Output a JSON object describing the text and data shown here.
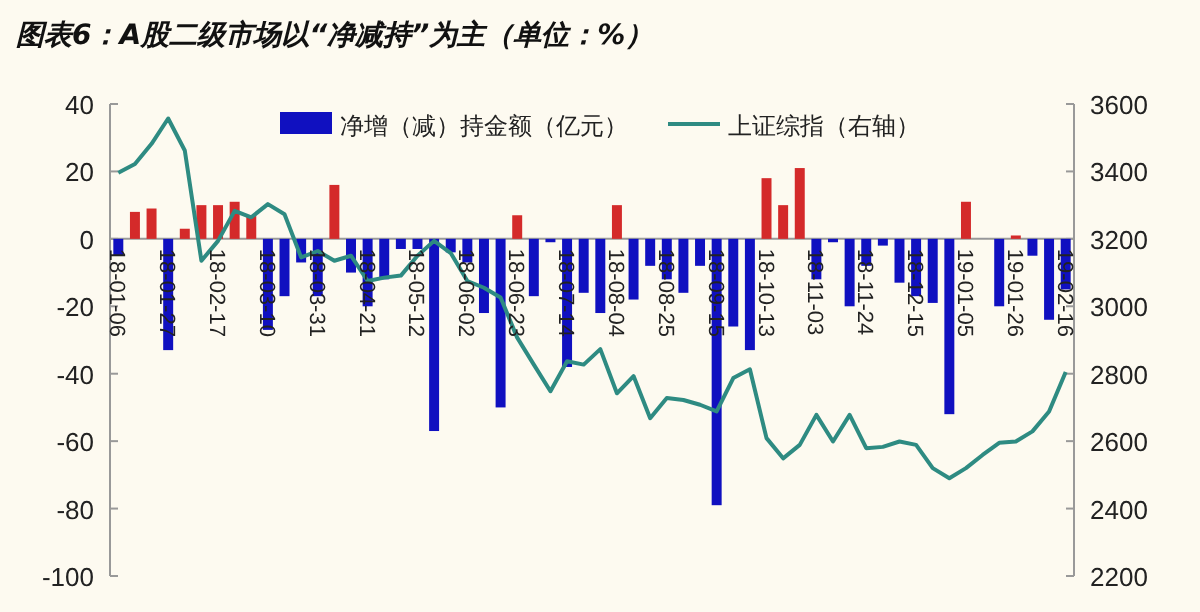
{
  "chart_data": {
    "type": "bar",
    "title": "图表6：A股二级市场以“净减持”为主（单位：%）",
    "categories": [
      "18-01-06",
      null,
      null,
      "18-01-27",
      null,
      null,
      "18-02-17",
      null,
      null,
      "18-03-10",
      null,
      null,
      "18-03-31",
      null,
      null,
      "18-04-21",
      null,
      null,
      "18-05-12",
      null,
      null,
      "18-06-02",
      null,
      null,
      "18-06-23",
      null,
      null,
      "18-07-14",
      null,
      null,
      "18-08-04",
      null,
      null,
      "18-08-25",
      null,
      null,
      "18-09-15",
      null,
      null,
      "18-10-13",
      null,
      null,
      "18-11-03",
      null,
      null,
      "18-11-24",
      null,
      null,
      "18-12-15",
      null,
      null,
      "19-01-05",
      null,
      null,
      "19-01-26",
      null,
      null,
      "19-02-16"
    ],
    "series": [
      {
        "name": "净增（减）持金额（亿元）",
        "color": "#1010c0",
        "colors": [
          "#1010c0",
          "#d42a2a",
          "#d42a2a",
          "#1010c0",
          "#d42a2a",
          "#d42a2a",
          "#d42a2a",
          "#d42a2a",
          "#d42a2a",
          "#1010c0",
          "#1010c0",
          "#1010c0",
          "#1010c0",
          "#d42a2a",
          "#1010c0",
          "#1010c0",
          "#1010c0",
          "#1010c0",
          "#1010c0",
          "#1010c0",
          "#1010c0",
          "#1010c0",
          "#1010c0",
          "#1010c0",
          "#d42a2a",
          "#1010c0",
          "#1010c0",
          "#1010c0",
          "#1010c0",
          "#1010c0",
          "#d42a2a",
          "#1010c0",
          "#1010c0",
          "#1010c0",
          "#1010c0",
          "#1010c0",
          "#1010c0",
          "#1010c0",
          "#1010c0",
          "#d42a2a",
          "#d42a2a",
          "#d42a2a",
          "#1010c0",
          "#1010c0",
          "#1010c0",
          "#1010c0",
          "#1010c0",
          "#1010c0",
          "#1010c0",
          "#1010c0",
          "#1010c0",
          "#d42a2a",
          "#1010c0",
          "#1010c0",
          "#d42a2a",
          "#1010c0",
          "#1010c0",
          "#1010c0"
        ],
        "values": [
          -5,
          8,
          9,
          -33,
          3,
          10,
          10,
          11,
          7,
          -27,
          -17,
          -7,
          -17,
          16,
          -10,
          -20,
          -12,
          -3,
          -3,
          -57,
          -4,
          -7,
          -22,
          -50,
          7,
          -17,
          -1,
          -38,
          -16,
          -22,
          10,
          -18,
          -8,
          -12,
          -16,
          -8,
          -79,
          -26,
          -33,
          18,
          10,
          21,
          -12,
          -1,
          -20,
          -8,
          -2,
          -13,
          -17,
          -19,
          -52,
          11,
          0,
          -20,
          1,
          -5,
          -24,
          -15
        ]
      },
      {
        "name": "上证综指（右轴）",
        "type": "line",
        "axis": "y2",
        "color": "#2e8b82",
        "values": [
          3396,
          3422,
          3482,
          3557,
          3462,
          3135,
          3194,
          3283,
          3264,
          3303,
          3273,
          3145,
          3164,
          3135,
          3150,
          3075,
          3085,
          3091,
          3150,
          3194,
          3158,
          3075,
          3055,
          3026,
          2907,
          2827,
          2748,
          2837,
          2827,
          2873,
          2742,
          2793,
          2668,
          2728,
          2722,
          2708,
          2688,
          2787,
          2813,
          2609,
          2549,
          2589,
          2678,
          2599,
          2678,
          2579,
          2583,
          2599,
          2589,
          2520,
          2490,
          2520,
          2559,
          2595,
          2599,
          2629,
          2688,
          2805
        ]
      }
    ],
    "ylim": [
      -100,
      40
    ],
    "yticks": [
      -100,
      -80,
      -60,
      -40,
      -20,
      0,
      20,
      40
    ],
    "y2lim": [
      2200,
      3600
    ],
    "y2ticks": [
      2200,
      2400,
      2600,
      2800,
      3000,
      3200,
      3400,
      3600
    ],
    "legend": "top",
    "grid": false
  }
}
